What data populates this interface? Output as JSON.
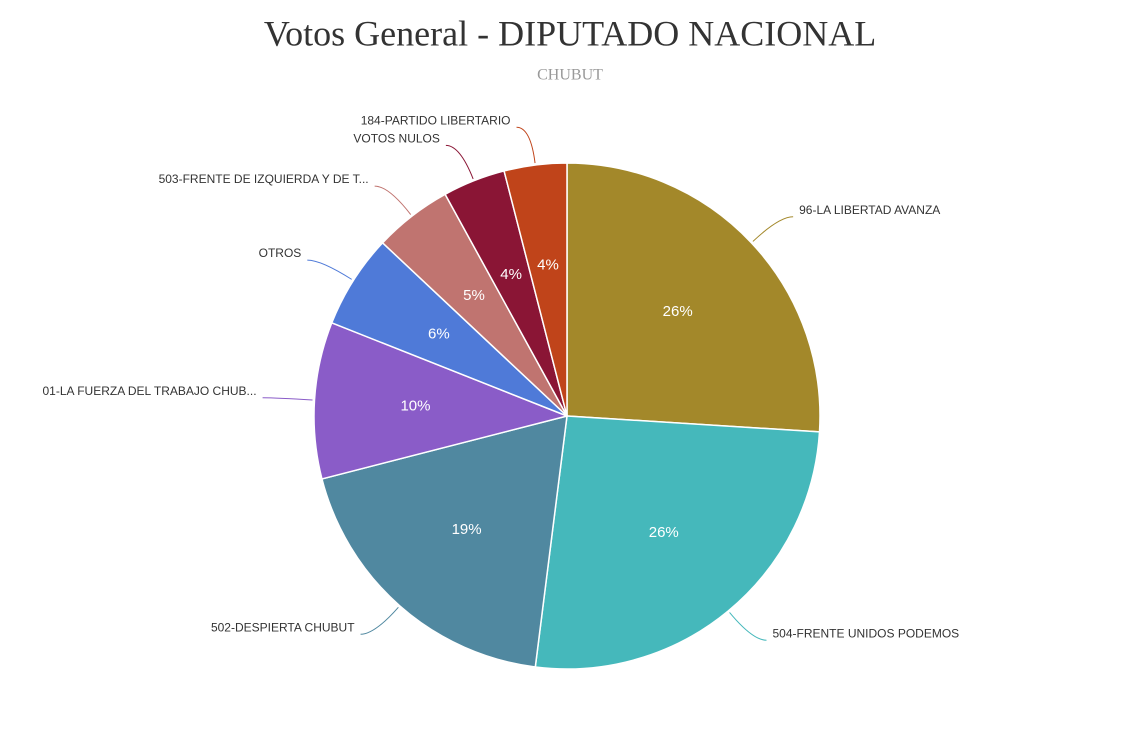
{
  "chart_data": {
    "type": "pie",
    "title": "Votos General - DIPUTADO NACIONAL",
    "subtitle": "CHUBUT",
    "categories": [
      "96-LA LIBERTAD AVANZA",
      "504-FRENTE UNIDOS PODEMOS",
      "502-DESPIERTA CHUBUT",
      "01-LA FUERZA DEL TRABAJO CHUB...",
      "OTROS",
      "503-FRENTE DE IZQUIERDA Y DE T...",
      "VOTOS NULOS",
      "184-PARTIDO LIBERTARIO"
    ],
    "values": [
      26,
      26,
      19,
      10,
      6,
      5,
      4,
      4
    ],
    "value_labels": [
      "26%",
      "26%",
      "19%",
      "10%",
      "6%",
      "5%",
      "4%",
      "4%"
    ],
    "colors": [
      "#a3882a",
      "#45b8bb",
      "#5088a0",
      "#8a5cc8",
      "#4f7ad8",
      "#c07470",
      "#8a1535",
      "#c0441a"
    ]
  }
}
